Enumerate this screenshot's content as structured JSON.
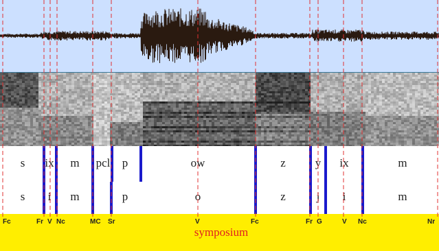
{
  "phone_tier": [
    "s",
    "ix",
    "m",
    "pcl",
    "p",
    "ow",
    "z",
    "y",
    "ix",
    "m"
  ],
  "phoneme_tier": [
    "s",
    "i",
    "m",
    "p",
    "o",
    "z",
    "j",
    "i",
    "m"
  ],
  "landmarks": [
    "Fc",
    "Fr",
    "V",
    "Nc",
    "MC",
    "Sr",
    "V",
    "Fc",
    "Fr",
    "G",
    "V",
    "Nc",
    "Nr"
  ],
  "word": "symposium",
  "colors": {
    "waveform_bg": "#cce0ff",
    "landmark_line": "#e03030",
    "boundary_bar": "#1a1acc",
    "landmark_bg": "#ffee00",
    "word_text": "#e02020"
  }
}
